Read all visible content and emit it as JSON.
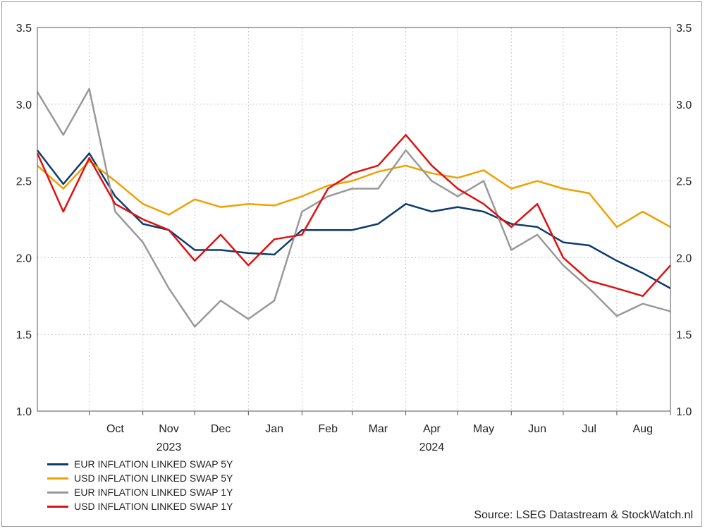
{
  "chart_data": {
    "type": "line",
    "title": "",
    "xlabel": "",
    "ylabel": "",
    "ylim": [
      1.0,
      3.5
    ],
    "y_ticks": [
      "1.0",
      "1.5",
      "2.0",
      "2.5",
      "3.0",
      "3.5"
    ],
    "months": [
      "Oct",
      "Nov",
      "Dec",
      "Jan",
      "Feb",
      "Mar",
      "Apr",
      "May",
      "Jun",
      "Jul",
      "Aug"
    ],
    "years": [
      "2023",
      "2024"
    ],
    "grid": true,
    "legend_position": "bottom-left",
    "x": [
      "2023-09-01",
      "2023-09-16",
      "2023-10-01",
      "2023-10-16",
      "2023-11-01",
      "2023-11-16",
      "2023-12-01",
      "2023-12-16",
      "2024-01-01",
      "2024-01-16",
      "2024-02-01",
      "2024-02-16",
      "2024-03-01",
      "2024-03-16",
      "2024-04-01",
      "2024-04-16",
      "2024-05-01",
      "2024-05-16",
      "2024-06-01",
      "2024-06-16",
      "2024-07-01",
      "2024-07-16",
      "2024-08-01",
      "2024-08-16",
      "2024-09-01"
    ],
    "series": [
      {
        "name": "EUR INFLATION LINKED SWAP 5Y",
        "color": "#0d3b6e",
        "values": [
          2.7,
          2.48,
          2.68,
          2.4,
          2.22,
          2.18,
          2.05,
          2.05,
          2.03,
          2.02,
          2.18,
          2.18,
          2.18,
          2.22,
          2.35,
          2.3,
          2.33,
          2.3,
          2.22,
          2.2,
          2.1,
          2.08,
          1.98,
          1.9,
          1.8
        ]
      },
      {
        "name": "USD INFLATION LINKED SWAP 5Y",
        "color": "#f0a000",
        "values": [
          2.6,
          2.45,
          2.63,
          2.5,
          2.35,
          2.28,
          2.38,
          2.33,
          2.35,
          2.34,
          2.4,
          2.47,
          2.5,
          2.56,
          2.6,
          2.55,
          2.52,
          2.57,
          2.45,
          2.5,
          2.45,
          2.42,
          2.2,
          2.3,
          2.2
        ]
      },
      {
        "name": "EUR INFLATION LINKED SWAP 1Y",
        "color": "#999999",
        "values": [
          3.08,
          2.8,
          3.1,
          2.3,
          2.1,
          1.8,
          1.55,
          1.72,
          1.6,
          1.72,
          2.3,
          2.4,
          2.45,
          2.45,
          2.7,
          2.5,
          2.4,
          2.5,
          2.05,
          2.15,
          1.95,
          1.8,
          1.62,
          1.7,
          1.65
        ]
      },
      {
        "name": "USD INFLATION LINKED SWAP 1Y",
        "color": "#e01010",
        "values": [
          2.68,
          2.3,
          2.65,
          2.35,
          2.25,
          2.18,
          1.98,
          2.15,
          1.95,
          2.12,
          2.15,
          2.45,
          2.55,
          2.6,
          2.8,
          2.6,
          2.45,
          2.35,
          2.2,
          2.35,
          2.0,
          1.85,
          1.8,
          1.75,
          1.95
        ]
      }
    ]
  },
  "legend": {
    "items": [
      {
        "label": "EUR INFLATION LINKED SWAP 5Y",
        "color": "#0d3b6e"
      },
      {
        "label": "USD INFLATION LINKED SWAP 5Y",
        "color": "#f0a000"
      },
      {
        "label": "EUR INFLATION LINKED SWAP 1Y",
        "color": "#999999"
      },
      {
        "label": "USD INFLATION LINKED SWAP 1Y",
        "color": "#e01010"
      }
    ]
  },
  "source": "Source: LSEG Datastream & StockWatch.nl"
}
